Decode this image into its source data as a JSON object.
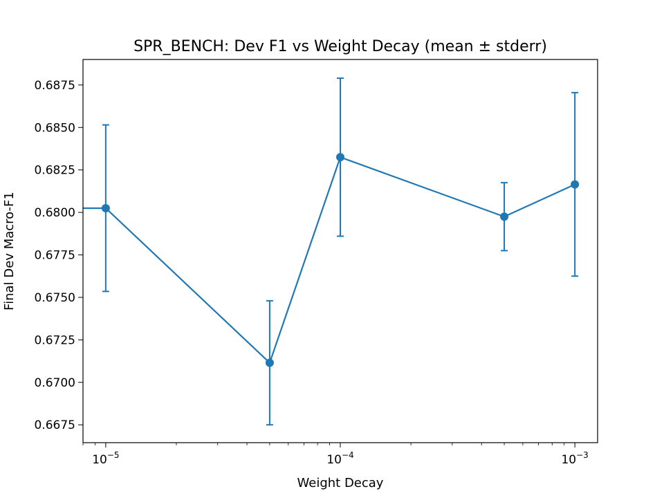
{
  "chart_data": {
    "type": "line",
    "title": "SPR_BENCH: Dev F1 vs Weight Decay (mean ± stderr)",
    "xlabel": "Weight Decay",
    "ylabel": "Final Dev Macro-F1",
    "xscale": "log",
    "xlim": [
      8e-06,
      0.00125
    ],
    "ylim": [
      0.66645,
      0.689
    ],
    "grid": false,
    "legend": "none",
    "color": "#1f77b4",
    "x_ticks": [
      {
        "value": 1e-05,
        "base": "10",
        "exp": "−5"
      },
      {
        "value": 0.0001,
        "base": "10",
        "exp": "−4"
      },
      {
        "value": 0.001,
        "base": "10",
        "exp": "−3"
      }
    ],
    "y_ticks": [
      "0.6675",
      "0.6700",
      "0.6725",
      "0.6750",
      "0.6775",
      "0.6800",
      "0.6825",
      "0.6850",
      "0.6875"
    ],
    "series": [
      {
        "x": [
          0,
          1e-05,
          5e-05,
          0.0001,
          0.0005,
          0.001
        ],
        "y": [
          0.68025,
          0.68025,
          0.67115,
          0.68325,
          0.67975,
          0.68165
        ],
        "yerr": [
          0.0049,
          0.0049,
          0.00365,
          0.00465,
          0.002,
          0.0054
        ]
      }
    ]
  }
}
